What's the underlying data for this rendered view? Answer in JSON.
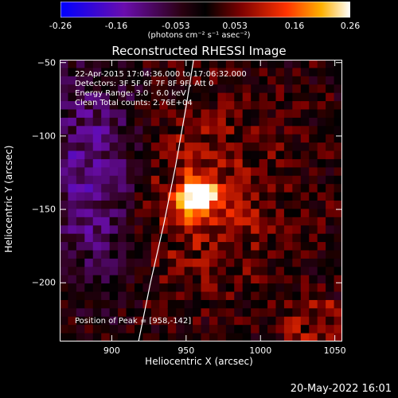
{
  "colorbar": {
    "ticks": [
      "-0.26",
      "-0.16",
      "-0.053",
      "0.053",
      "0.16",
      "0.26"
    ],
    "unit_label": "(photons cm⁻² s⁻¹ asec⁻²)",
    "range": [
      -0.26,
      0.26
    ]
  },
  "chart_data": {
    "type": "heatmap",
    "title": "Reconstructed RHESSI Image",
    "xlabel": "Heliocentric X (arcsec)",
    "ylabel": "Heliocentric Y (arcsec)",
    "xlim": [
      865,
      1055
    ],
    "ylim": [
      -240,
      -48
    ],
    "xticks": [
      900,
      950,
      1000,
      1050
    ],
    "xtick_labels": [
      "900",
      "950",
      "1000",
      "1050"
    ],
    "yticks": [
      -50,
      -100,
      -150,
      -200
    ],
    "ytick_labels": [
      "−50",
      "−100",
      "−150",
      "−200"
    ],
    "peak": {
      "x": 958,
      "y": -142
    },
    "limb_curve": [
      [
        918,
        -240
      ],
      [
        926,
        -200
      ],
      [
        935,
        -160
      ],
      [
        943,
        -120
      ],
      [
        950,
        -80
      ],
      [
        955,
        -48
      ]
    ],
    "annotations": {
      "time": "22-Apr-2015 17:04:36.000 to 17:06:32.000",
      "detectors": "Detectors: 3F 5F 6F 7F 8F 9F, Att 0",
      "energy": "Energy Range: 3.0 - 6.0 keV",
      "clean": "Clean    Total counts: 2.76E+04",
      "peak_label": "Position of Peak = [958,-142]"
    }
  },
  "footer": "20-May-2022 16:01"
}
